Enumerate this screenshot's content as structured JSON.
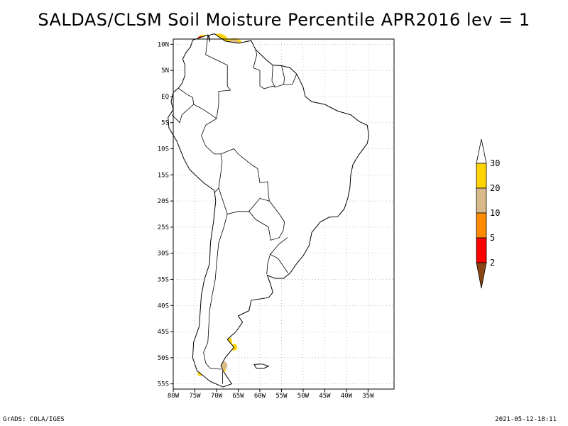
{
  "title": "SALDAS/CLSM Soil Moisture Percentile APR2016 lev = 1",
  "map": {
    "region": "South America",
    "lon_range": [
      -80,
      -29
    ],
    "lat_range": [
      -56,
      11
    ],
    "x_ticks": [
      {
        "lon": -80,
        "label": "80W"
      },
      {
        "lon": -75,
        "label": "75W"
      },
      {
        "lon": -70,
        "label": "70W"
      },
      {
        "lon": -65,
        "label": "65W"
      },
      {
        "lon": -60,
        "label": "60W"
      },
      {
        "lon": -55,
        "label": "55W"
      },
      {
        "lon": -50,
        "label": "50W"
      },
      {
        "lon": -45,
        "label": "45W"
      },
      {
        "lon": -40,
        "label": "40W"
      },
      {
        "lon": -35,
        "label": "35W"
      }
    ],
    "y_ticks": [
      {
        "lat": 10,
        "label": "10N"
      },
      {
        "lat": 5,
        "label": "5N"
      },
      {
        "lat": 0,
        "label": "EQ"
      },
      {
        "lat": -5,
        "label": "5S"
      },
      {
        "lat": -10,
        "label": "10S"
      },
      {
        "lat": -15,
        "label": "15S"
      },
      {
        "lat": -20,
        "label": "20S"
      },
      {
        "lat": -25,
        "label": "25S"
      },
      {
        "lat": -30,
        "label": "30S"
      },
      {
        "lat": -35,
        "label": "35S"
      },
      {
        "lat": -40,
        "label": "40S"
      },
      {
        "lat": -45,
        "label": "45S"
      },
      {
        "lat": -50,
        "label": "50S"
      },
      {
        "lat": -55,
        "label": "55S"
      }
    ]
  },
  "colorbar": {
    "labels": [
      "30",
      "20",
      "10",
      "5",
      "2"
    ],
    "colors": {
      "above": "#ffffff",
      "c20_30": "#ffd400",
      "c10_20": "#d9b88a",
      "c5_10": "#ff8c00",
      "c2_5": "#ff0000",
      "below": "#8b4513"
    }
  },
  "footer": {
    "left": "GrADS: COLA/IGES",
    "right": "2021-05-12-18:11"
  }
}
